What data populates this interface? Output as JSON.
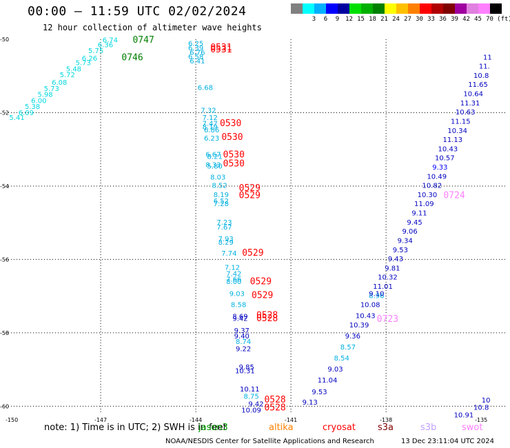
{
  "header": {
    "title": "00:00 – 11:59 UTC 02/02/2024",
    "subtitle": "12 hour collection of altimeter wave heights"
  },
  "scale": {
    "items": [
      {
        "label": "",
        "color": "#808080"
      },
      {
        "label": "3",
        "color": "#00ffff"
      },
      {
        "label": "6",
        "color": "#00b0ff"
      },
      {
        "label": "9",
        "color": "#0000ff"
      },
      {
        "label": "12",
        "color": "#0000a0"
      },
      {
        "label": "15",
        "color": "#00e000"
      },
      {
        "label": "18",
        "color": "#00b000"
      },
      {
        "label": "21",
        "color": "#008000"
      },
      {
        "label": "24",
        "color": "#ffff00"
      },
      {
        "label": "27",
        "color": "#ffc000"
      },
      {
        "label": "30",
        "color": "#ff8000"
      },
      {
        "label": "33",
        "color": "#ff0000"
      },
      {
        "label": "36",
        "color": "#b00000"
      },
      {
        "label": "39",
        "color": "#800000"
      },
      {
        "label": "42",
        "color": "#a000a0"
      },
      {
        "label": "45",
        "color": "#e080e0"
      },
      {
        "label": "70",
        "color": "#ff80ff"
      },
      {
        "label": "",
        "color": "#000000"
      }
    ],
    "unit": "(ft)"
  },
  "axes": {
    "lon_labels": [
      "-150",
      "-147",
      "-144",
      "-141",
      "-138",
      "-135"
    ],
    "lat_labels": [
      "-50",
      "-52",
      "-54",
      "-56",
      "-58",
      "-60"
    ]
  },
  "tracks": {
    "west": {
      "color": "#00d8e0",
      "points": [
        {
          "lon": -149.64,
          "lat": -52.2,
          "v": "5.41"
        },
        {
          "lon": -149.35,
          "lat": -52.07,
          "v": "6.09"
        },
        {
          "lon": -149.15,
          "lat": -51.9,
          "v": "5.38"
        },
        {
          "lon": -148.95,
          "lat": -51.74,
          "v": "6.00"
        },
        {
          "lon": -148.75,
          "lat": -51.57,
          "v": "5.98"
        },
        {
          "lon": -148.55,
          "lat": -51.41,
          "v": "5.73"
        },
        {
          "lon": -148.3,
          "lat": -51.24,
          "v": "6.08"
        },
        {
          "lon": -148.05,
          "lat": -51.03,
          "v": "5.72"
        },
        {
          "lon": -147.85,
          "lat": -50.87,
          "v": "5.48"
        },
        {
          "lon": -147.55,
          "lat": -50.7,
          "v": "5.73"
        },
        {
          "lon": -147.35,
          "lat": -50.58,
          "v": "6.26"
        },
        {
          "lon": -147.15,
          "lat": -50.38,
          "v": "5.75"
        },
        {
          "lon": -146.85,
          "lat": -50.22,
          "v": "6.36"
        },
        {
          "lon": -146.7,
          "lat": -50.08,
          "v": "6.74"
        }
      ],
      "times": [
        {
          "lon": -145.65,
          "lat": -50.09,
          "t": "0747",
          "color": "#008000"
        },
        {
          "lon": -146.0,
          "lat": -50.57,
          "t": "0746",
          "color": "#008000"
        }
      ]
    },
    "middle": {
      "color": "#00b0e0",
      "points": [
        {
          "lon": -144.0,
          "lat": -50.18,
          "v": "6.25"
        },
        {
          "lon": -144.0,
          "lat": -50.3,
          "v": "6.39"
        },
        {
          "lon": -143.95,
          "lat": -50.42,
          "v": "6.76"
        },
        {
          "lon": -144.0,
          "lat": -50.54,
          "v": "6.58"
        },
        {
          "lon": -143.95,
          "lat": -50.66,
          "v": "6.41"
        },
        {
          "lon": -143.7,
          "lat": -51.38,
          "v": "6.68"
        },
        {
          "lon": -143.6,
          "lat": -52.0,
          "v": "7.32"
        },
        {
          "lon": -143.55,
          "lat": -52.2,
          "v": "7.12"
        },
        {
          "lon": -143.55,
          "lat": -52.36,
          "v": "7.47"
        },
        {
          "lon": -143.55,
          "lat": -52.45,
          "v": "8.19"
        },
        {
          "lon": -143.5,
          "lat": -52.54,
          "v": "6.86"
        },
        {
          "lon": -143.5,
          "lat": -52.76,
          "v": "6.23"
        },
        {
          "lon": -143.45,
          "lat": -53.2,
          "v": "6.67"
        },
        {
          "lon": -143.4,
          "lat": -53.26,
          "v": "8.21"
        },
        {
          "lon": -143.45,
          "lat": -53.48,
          "v": "8.33"
        },
        {
          "lon": -143.4,
          "lat": -53.52,
          "v": "5.80"
        },
        {
          "lon": -143.3,
          "lat": -53.82,
          "v": "8.03"
        },
        {
          "lon": -143.25,
          "lat": -54.05,
          "v": "8.52"
        },
        {
          "lon": -143.2,
          "lat": -54.3,
          "v": "8.19"
        },
        {
          "lon": -143.2,
          "lat": -54.47,
          "v": "6.52"
        },
        {
          "lon": -143.2,
          "lat": -54.55,
          "v": "7.28"
        },
        {
          "lon": -143.1,
          "lat": -55.05,
          "v": "7.23"
        },
        {
          "lon": -143.1,
          "lat": -55.18,
          "v": "7.67"
        },
        {
          "lon": -143.05,
          "lat": -55.5,
          "v": "7.93"
        },
        {
          "lon": -143.05,
          "lat": -55.6,
          "v": "8.29"
        },
        {
          "lon": -142.95,
          "lat": -55.9,
          "v": "7.74"
        },
        {
          "lon": -142.85,
          "lat": -56.28,
          "v": "7.12"
        },
        {
          "lon": -142.8,
          "lat": -56.45,
          "v": "7.42"
        },
        {
          "lon": -142.8,
          "lat": -56.6,
          "v": "7.66"
        },
        {
          "lon": -142.8,
          "lat": -56.67,
          "v": "8.00"
        },
        {
          "lon": -142.7,
          "lat": -57.0,
          "v": "9.03"
        },
        {
          "lon": -142.65,
          "lat": -57.3,
          "v": "8.58"
        },
        {
          "lon": -142.6,
          "lat": -57.62,
          "v": "8.69",
          "color": "#0000c0"
        },
        {
          "lon": -142.6,
          "lat": -57.67,
          "v": "9.42",
          "color": "#0000c0"
        },
        {
          "lon": -142.55,
          "lat": -58.0,
          "v": "9.37",
          "color": "#0000c0"
        },
        {
          "lon": -142.55,
          "lat": -58.15,
          "v": "9.40",
          "color": "#0000c0"
        },
        {
          "lon": -142.5,
          "lat": -58.3,
          "v": "8.74"
        },
        {
          "lon": -142.5,
          "lat": -58.5,
          "v": "9.22",
          "color": "#0000c0"
        },
        {
          "lon": -142.4,
          "lat": -59.0,
          "v": "9.85",
          "color": "#0000c0"
        },
        {
          "lon": -142.45,
          "lat": -59.1,
          "v": "10.31",
          "color": "#0000c0"
        },
        {
          "lon": -142.3,
          "lat": -59.6,
          "v": "10.11",
          "color": "#0000c0"
        },
        {
          "lon": -142.25,
          "lat": -59.8,
          "v": "8.75"
        },
        {
          "lon": -142.1,
          "lat": -60.0,
          "v": "9.42",
          "color": "#0000c0"
        },
        {
          "lon": -142.25,
          "lat": -60.17,
          "v": "10.09",
          "color": "#0000c0"
        }
      ],
      "times": [
        {
          "lon": -143.2,
          "lat": -50.3,
          "t": "0531",
          "color": "#ff0000"
        },
        {
          "lon": -143.2,
          "lat": -50.36,
          "t": "0531",
          "color": "#ff0000"
        },
        {
          "lon": -142.9,
          "lat": -52.37,
          "t": "0530",
          "color": "#ff0000"
        },
        {
          "lon": -142.85,
          "lat": -52.74,
          "t": "0530",
          "color": "#ff0000"
        },
        {
          "lon": -142.8,
          "lat": -53.22,
          "t": "0530",
          "color": "#ff0000"
        },
        {
          "lon": -142.8,
          "lat": -53.47,
          "t": "0530",
          "color": "#ff0000"
        },
        {
          "lon": -142.3,
          "lat": -54.13,
          "t": "0529",
          "color": "#ff0000"
        },
        {
          "lon": -142.3,
          "lat": -54.33,
          "t": "0529",
          "color": "#ff0000"
        },
        {
          "lon": -142.2,
          "lat": -55.9,
          "t": "0529",
          "color": "#ff0000"
        },
        {
          "lon": -141.95,
          "lat": -56.68,
          "t": "0529",
          "color": "#ff0000"
        },
        {
          "lon": -141.9,
          "lat": -57.05,
          "t": "0529",
          "color": "#ff0000"
        },
        {
          "lon": -141.75,
          "lat": -57.6,
          "t": "0528",
          "color": "#ff0000"
        },
        {
          "lon": -141.75,
          "lat": -57.68,
          "t": "0528",
          "color": "#ff0000"
        },
        {
          "lon": -141.5,
          "lat": -59.9,
          "t": "0528",
          "color": "#ff0000"
        },
        {
          "lon": -141.5,
          "lat": -60.12,
          "t": "0528",
          "color": "#ff0000"
        }
      ]
    },
    "east": {
      "color": "#0000c0",
      "points": [
        {
          "lon": -140.4,
          "lat": -59.96,
          "v": "9.13"
        },
        {
          "lon": -140.1,
          "lat": -59.67,
          "v": "9.53"
        },
        {
          "lon": -139.85,
          "lat": -59.35,
          "v": "11.04"
        },
        {
          "lon": -139.6,
          "lat": -59.05,
          "v": "9.03"
        },
        {
          "lon": -139.4,
          "lat": -58.75,
          "v": "8.54",
          "color": "#00b0e0"
        },
        {
          "lon": -139.2,
          "lat": -58.45,
          "v": "8.57",
          "color": "#00b0e0"
        },
        {
          "lon": -139.05,
          "lat": -58.15,
          "v": "9.36"
        },
        {
          "lon": -138.85,
          "lat": -57.85,
          "v": "10.39"
        },
        {
          "lon": -138.65,
          "lat": -57.6,
          "v": "10.43"
        },
        {
          "lon": -138.5,
          "lat": -57.3,
          "v": "10.08"
        },
        {
          "lon": -138.3,
          "lat": -57.05,
          "v": "8.96",
          "color": "#00b0e0"
        },
        {
          "lon": -138.3,
          "lat": -57.0,
          "v": "9.10"
        },
        {
          "lon": -138.1,
          "lat": -56.8,
          "v": "11.01"
        },
        {
          "lon": -137.95,
          "lat": -56.55,
          "v": "10.32"
        },
        {
          "lon": -137.8,
          "lat": -56.3,
          "v": "9.81"
        },
        {
          "lon": -137.7,
          "lat": -56.05,
          "v": "9.43"
        },
        {
          "lon": -137.55,
          "lat": -55.8,
          "v": "9.53"
        },
        {
          "lon": -137.4,
          "lat": -55.55,
          "v": "9.34"
        },
        {
          "lon": -137.25,
          "lat": -55.3,
          "v": "9.06"
        },
        {
          "lon": -137.1,
          "lat": -55.05,
          "v": "9.45"
        },
        {
          "lon": -136.95,
          "lat": -54.8,
          "v": "9.11"
        },
        {
          "lon": -136.8,
          "lat": -54.55,
          "v": "11.09"
        },
        {
          "lon": -136.7,
          "lat": -54.3,
          "v": "10.30"
        },
        {
          "lon": -136.55,
          "lat": -54.05,
          "v": "10.82"
        },
        {
          "lon": -136.4,
          "lat": -53.8,
          "v": "10.49"
        },
        {
          "lon": -136.3,
          "lat": -53.55,
          "v": "9.33",
          "color": "#0000ff"
        },
        {
          "lon": -136.15,
          "lat": -53.3,
          "v": "10.57"
        },
        {
          "lon": -136.05,
          "lat": -53.05,
          "v": "10.43"
        },
        {
          "lon": -135.9,
          "lat": -52.8,
          "v": "11.13"
        },
        {
          "lon": -135.75,
          "lat": -52.55,
          "v": "10.34"
        },
        {
          "lon": -135.65,
          "lat": -52.3,
          "v": "11.15"
        },
        {
          "lon": -135.5,
          "lat": -52.05,
          "v": "10.63"
        },
        {
          "lon": -135.35,
          "lat": -51.8,
          "v": "11.31"
        },
        {
          "lon": -135.25,
          "lat": -51.55,
          "v": "10.64"
        },
        {
          "lon": -135.1,
          "lat": -51.3,
          "v": "11.65"
        },
        {
          "lon": -135.0,
          "lat": -51.05,
          "v": "10.8"
        },
        {
          "lon": -134.9,
          "lat": -50.8,
          "v": "11."
        },
        {
          "lon": -134.8,
          "lat": -50.55,
          "v": "11"
        }
      ],
      "times": [
        {
          "lon": -135.85,
          "lat": -54.33,
          "t": "0724",
          "color": "#ff80ff"
        },
        {
          "lon": -137.95,
          "lat": -57.7,
          "t": "0723",
          "color": "#ff80ff"
        }
      ]
    },
    "far_east": {
      "color": "#0000c0",
      "points": [
        {
          "lon": -135.0,
          "lat": -60.1,
          "v": "10.8"
        },
        {
          "lon": -135.55,
          "lat": -60.3,
          "v": "10.91"
        },
        {
          "lon": -134.85,
          "lat": -59.9,
          "v": "10"
        }
      ]
    }
  },
  "footer": {
    "note": "note:  1) Time is in UTC;  2) SWH is in feet",
    "missions": [
      {
        "label": "jason3",
        "color": "#00a000"
      },
      {
        "label": "altika",
        "color": "#ff8000"
      },
      {
        "label": "cryosat",
        "color": "#ff0000"
      },
      {
        "label": "s3a",
        "color": "#800000"
      },
      {
        "label": "s3b",
        "color": "#c0a0ff"
      },
      {
        "label": "swot",
        "color": "#ff80ff"
      }
    ],
    "credit": "NOAA/NESDIS Center for Satellite Applications and Research",
    "timestamp": "13 Dec 23:11:04 UTC 2024"
  }
}
